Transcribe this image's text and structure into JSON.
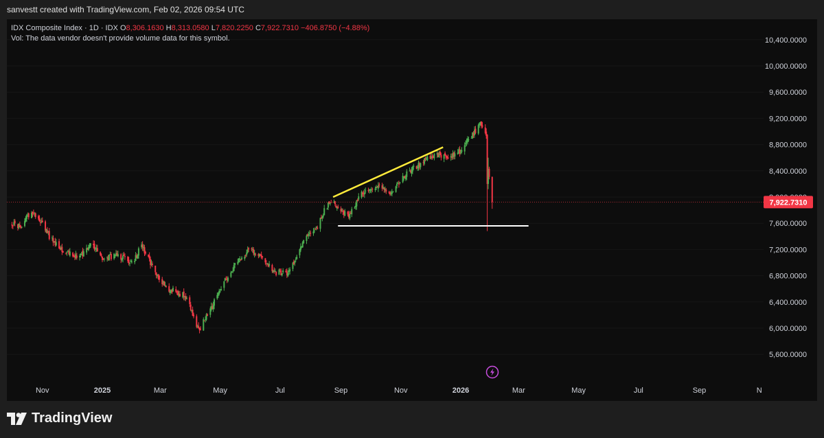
{
  "header": {
    "credit": "sanvestt created with TradingView.com, Feb 02, 2026 09:54 UTC"
  },
  "legend": {
    "symbol": "IDX Composite Index · 1D · IDX",
    "o_label": "O",
    "o_value": "8,306.1630",
    "h_label": "H",
    "h_value": "8,313.0580",
    "l_label": "L",
    "l_value": "7,820.2250",
    "c_label": "C",
    "c_value": "7,922.7310",
    "change": "−406.8750 (−4.88%)",
    "vol_note": "Vol: The data vendor doesn't provide volume data for this symbol."
  },
  "footer": {
    "brand": "TradingView",
    "logo_icon": "tradingview-logo-icon"
  },
  "colors": {
    "up": "#4caf50",
    "down": "#f23645",
    "price_tag": "#f23645",
    "trendline": "#ffeb3b",
    "support": "#ffffff",
    "bolt": "#c84ddf"
  },
  "chart_data": {
    "type": "candlestick",
    "symbol": "IDX Composite Index",
    "interval": "1D",
    "y_ticks": [
      "5,600.0000",
      "6,000.0000",
      "6,400.0000",
      "6,800.0000",
      "7,200.0000",
      "7,600.0000",
      "8,000.0000",
      "8,400.0000",
      "8,800.0000",
      "9,200.0000",
      "9,600.0000",
      "10,000.0000",
      "10,400.0000"
    ],
    "y_tick_values": [
      5600,
      6000,
      6400,
      6800,
      7200,
      7600,
      8000,
      8400,
      8800,
      9200,
      9600,
      10000,
      10400
    ],
    "x_ticks": [
      "Nov",
      "2025",
      "Mar",
      "May",
      "Jul",
      "Sep",
      "Nov",
      "2026",
      "Mar",
      "May",
      "Jul",
      "Sep",
      "N"
    ],
    "x_tick_dates": [
      "2024-11-01",
      "2025-01-01",
      "2025-03-01",
      "2025-05-01",
      "2025-07-01",
      "2025-09-01",
      "2025-11-01",
      "2026-01-01",
      "2026-03-01",
      "2026-05-01",
      "2026-07-01",
      "2026-09-01",
      "2026-11-01"
    ],
    "last_price": 7922.731,
    "last_price_label": "7,922.7310",
    "path": [
      [
        "2024-10-01",
        7600
      ],
      [
        "2024-10-10",
        7550
      ],
      [
        "2024-10-20",
        7780
      ],
      [
        "2024-10-28",
        7700
      ],
      [
        "2024-11-10",
        7350
      ],
      [
        "2024-11-25",
        7150
      ],
      [
        "2024-12-10",
        7100
      ],
      [
        "2024-12-20",
        7300
      ],
      [
        "2025-01-01",
        7050
      ],
      [
        "2025-01-15",
        7120
      ],
      [
        "2025-02-01",
        7000
      ],
      [
        "2025-02-10",
        7280
      ],
      [
        "2025-02-25",
        6800
      ],
      [
        "2025-03-10",
        6600
      ],
      [
        "2025-03-25",
        6500
      ],
      [
        "2025-04-01",
        6300
      ],
      [
        "2025-04-09",
        5970
      ],
      [
        "2025-04-20",
        6250
      ],
      [
        "2025-05-05",
        6700
      ],
      [
        "2025-05-20",
        7050
      ],
      [
        "2025-06-01",
        7200
      ],
      [
        "2025-06-15",
        7050
      ],
      [
        "2025-06-25",
        6850
      ],
      [
        "2025-07-10",
        6850
      ],
      [
        "2025-07-25",
        7350
      ],
      [
        "2025-08-08",
        7550
      ],
      [
        "2025-08-15",
        7800
      ],
      [
        "2025-08-22",
        7950
      ],
      [
        "2025-09-01",
        7800
      ],
      [
        "2025-09-08",
        7700
      ],
      [
        "2025-09-22",
        8050
      ],
      [
        "2025-10-10",
        8150
      ],
      [
        "2025-10-20",
        8050
      ],
      [
        "2025-11-10",
        8400
      ],
      [
        "2025-11-25",
        8550
      ],
      [
        "2025-12-10",
        8650
      ],
      [
        "2025-12-20",
        8600
      ],
      [
        "2025-12-31",
        8700
      ],
      [
        "2026-01-10",
        8900
      ],
      [
        "2026-01-21",
        9100
      ],
      [
        "2026-01-27",
        8950
      ],
      [
        "2026-01-28",
        8350
      ],
      [
        "2026-01-29",
        8250
      ],
      [
        "2026-01-30",
        8300
      ],
      [
        "2026-02-02",
        7922.731
      ]
    ],
    "annotations": [
      {
        "type": "trendline",
        "from": [
          "2025-08-24",
          8000
        ],
        "to": [
          "2025-12-14",
          8760
        ]
      },
      {
        "type": "horizontal_segment",
        "from": [
          "2025-08-29",
          7560
        ],
        "to": [
          "2026-03-11",
          7560
        ]
      }
    ]
  }
}
